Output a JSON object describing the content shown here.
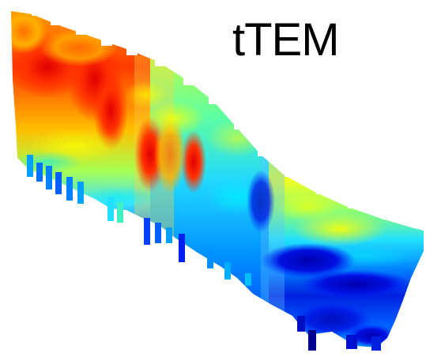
{
  "title": "tTEM",
  "section": {
    "type": "3d-resistivity-cross-section",
    "colormap": "jet",
    "colormap_colors": [
      "#00008f",
      "#0000ff",
      "#0080ff",
      "#00ffff",
      "#80ff80",
      "#ffff00",
      "#ff8000",
      "#ff0000",
      "#800000"
    ],
    "background": "#ffffff"
  }
}
